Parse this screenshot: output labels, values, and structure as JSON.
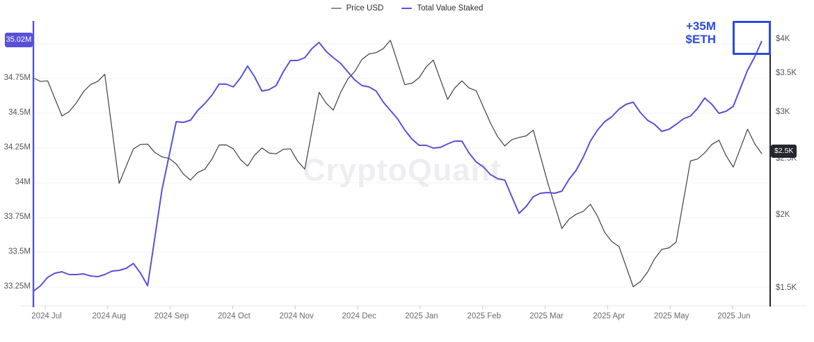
{
  "watermark": {
    "text": "CryptoQuant"
  },
  "legend": {
    "items": [
      {
        "label": "Price USD",
        "color": "#8d8d93"
      },
      {
        "label": "Total Value Staked",
        "color": "#5b4fd9"
      }
    ]
  },
  "annotation": {
    "line1": "+35M",
    "line2": "$ETH",
    "color": "#2b49e3"
  },
  "left_axis": {
    "badge": "35.02M",
    "badge_color": "#5a50d8",
    "tick_labels": [
      "34.75M",
      "34.5M",
      "34.25M",
      "34M",
      "33.75M",
      "33.5M",
      "33.25M"
    ],
    "tick_values": [
      34.75,
      34.5,
      34.25,
      34.0,
      33.75,
      33.5,
      33.25
    ]
  },
  "right_axis": {
    "badge": "$2.5K",
    "badge_color": "#26262e",
    "tick_labels": [
      "$4K",
      "$3.5K",
      "$3K",
      "$2.5K",
      "$2K",
      "$1.5K"
    ],
    "tick_values": [
      4000,
      3500,
      3000,
      2500,
      2000,
      1500
    ]
  },
  "chart_data": {
    "type": "line",
    "title": "",
    "x_tick_labels": [
      "2024 Jul",
      "2024 Aug",
      "2024 Sep",
      "2024 Oct",
      "2024 Nov",
      "2024 Dec",
      "2025 Jan",
      "2025 Feb",
      "2025 Mar",
      "2025 Apr",
      "2025 May",
      "2025 Jun"
    ],
    "x": [
      "2024-06-24",
      "2024-07-01",
      "2024-07-08",
      "2024-07-15",
      "2024-07-22",
      "2024-07-29",
      "2024-08-05",
      "2024-08-12",
      "2024-08-19",
      "2024-08-26",
      "2024-09-02",
      "2024-09-09",
      "2024-09-16",
      "2024-09-23",
      "2024-09-30",
      "2024-10-07",
      "2024-10-14",
      "2024-10-21",
      "2024-10-28",
      "2024-11-04",
      "2024-11-11",
      "2024-11-18",
      "2024-11-25",
      "2024-12-02",
      "2024-12-09",
      "2024-12-16",
      "2024-12-23",
      "2024-12-30",
      "2025-01-06",
      "2025-01-13",
      "2025-01-20",
      "2025-01-27",
      "2025-02-03",
      "2025-02-10",
      "2025-02-17",
      "2025-02-24",
      "2025-03-03",
      "2025-03-10",
      "2025-03-17",
      "2025-03-24",
      "2025-03-31",
      "2025-04-07",
      "2025-04-14",
      "2025-04-21",
      "2025-04-28",
      "2025-05-05",
      "2025-05-12",
      "2025-05-19",
      "2025-05-26",
      "2025-06-02",
      "2025-06-09",
      "2025-06-16"
    ],
    "series": [
      {
        "name": "Price USD",
        "yaxis": "right",
        "unit": "USD",
        "color": "#3f3f45",
        "values": [
          3440,
          3400,
          2960,
          3115,
          3350,
          3490,
          2270,
          2600,
          2650,
          2520,
          2450,
          2300,
          2400,
          2640,
          2600,
          2430,
          2610,
          2550,
          2600,
          2400,
          3250,
          3030,
          3420,
          3700,
          3800,
          3990,
          3350,
          3440,
          3690,
          3160,
          3400,
          3270,
          2880,
          2630,
          2720,
          2800,
          2280,
          1900,
          2010,
          2090,
          1870,
          1770,
          1510,
          1600,
          1750,
          1800,
          2480,
          2560,
          2690,
          2420,
          2810,
          2550
        ]
      },
      {
        "name": "Total Value Staked",
        "yaxis": "left",
        "unit": "M ETH",
        "color": "#5b4fd9",
        "values": [
          33.22,
          33.32,
          33.36,
          33.34,
          33.33,
          33.34,
          33.37,
          33.42,
          33.26,
          33.95,
          34.44,
          34.45,
          34.57,
          34.71,
          34.69,
          34.84,
          34.66,
          34.7,
          34.88,
          34.9,
          35.01,
          34.9,
          34.8,
          34.7,
          34.66,
          34.52,
          34.38,
          34.27,
          34.25,
          34.28,
          34.3,
          34.15,
          34.06,
          34.02,
          33.78,
          33.9,
          33.93,
          33.94,
          34.09,
          34.3,
          34.44,
          34.53,
          34.58,
          34.45,
          34.37,
          34.42,
          34.48,
          34.61,
          34.5,
          34.55,
          34.81,
          35.02
        ]
      }
    ],
    "left_axis": {
      "scale": "linear",
      "range": [
        33.1,
        35.1
      ],
      "last_value": 35.02
    },
    "right_axis": {
      "scale": "log",
      "range": [
        1400,
        4200
      ],
      "last_value": 2550
    },
    "grid": "horizontal",
    "legend_position": "top",
    "highlight_box": {
      "x": 1053,
      "y": 30,
      "width": 55,
      "height": 49
    }
  }
}
